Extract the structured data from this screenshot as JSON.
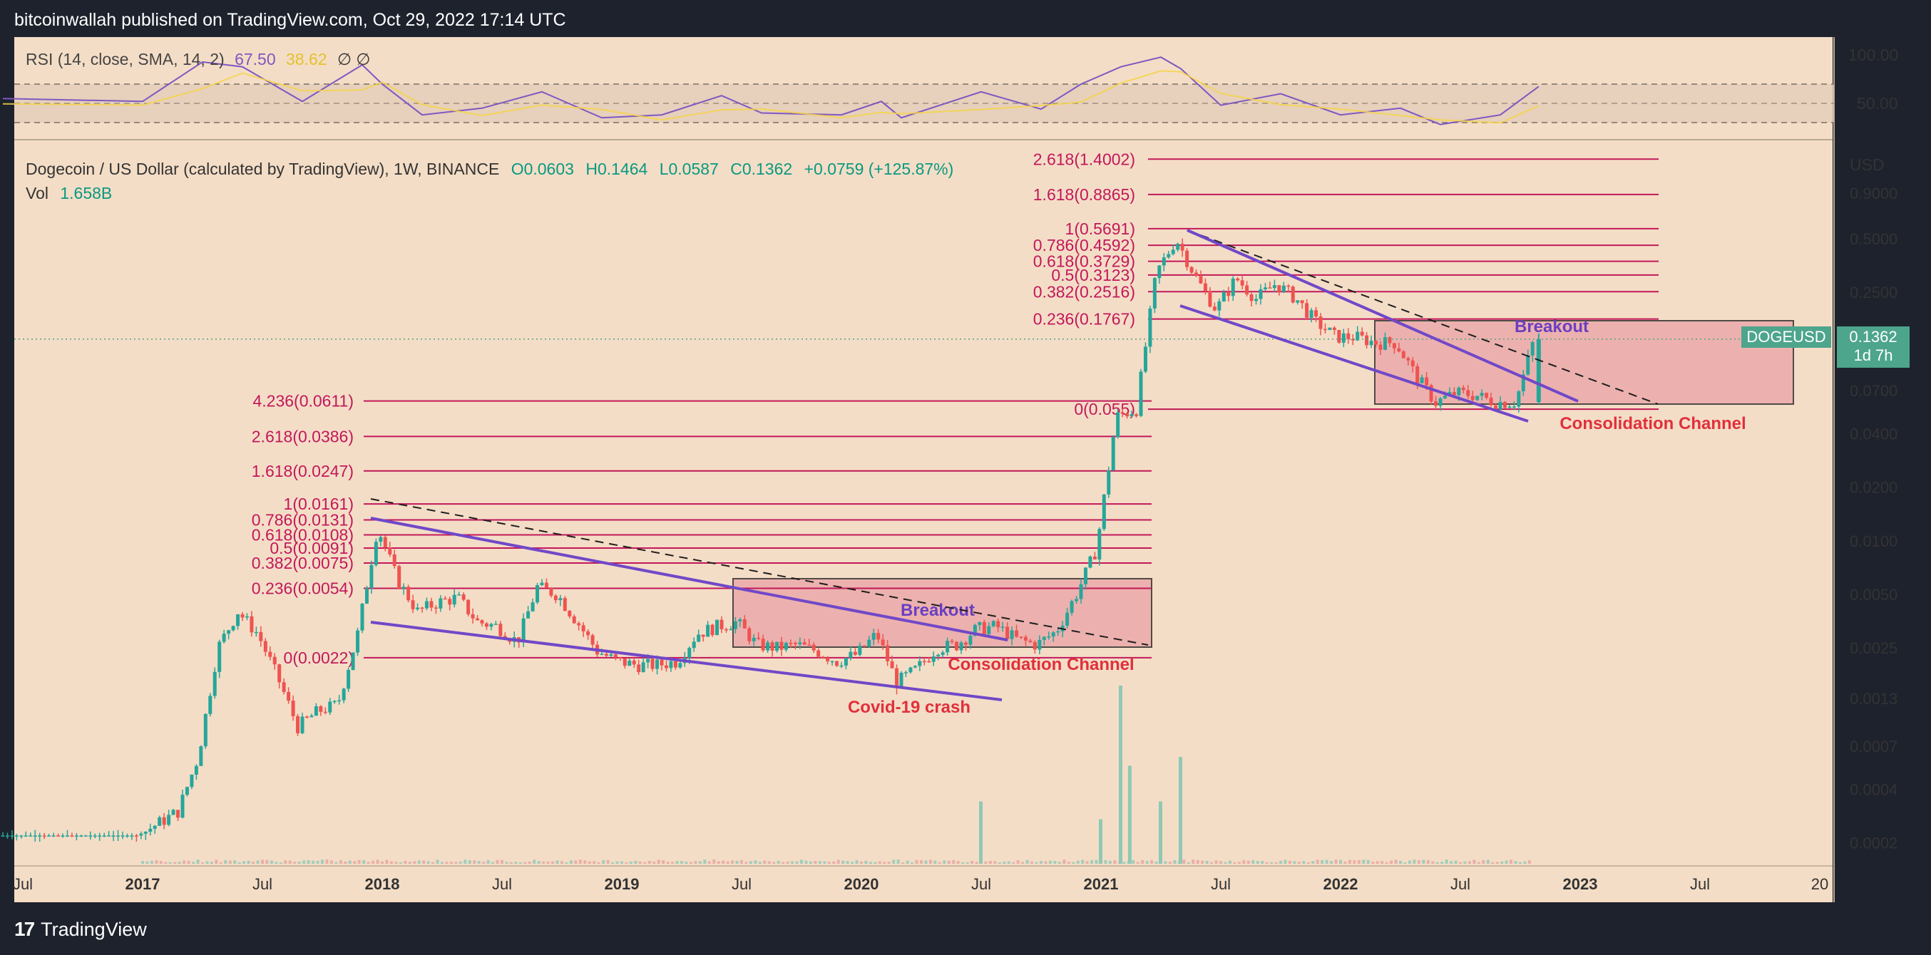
{
  "header": {
    "publisher": "bitcoinwallah published on TradingView.com, Oct 29, 2022 17:14 UTC"
  },
  "rsi_panel": {
    "title": "RSI (14, close, SMA, 14, 2)",
    "rsi_value": "67.50",
    "sma_value": "38.62",
    "toggles": "∅ ∅",
    "scale_labels": [
      "100.00",
      "50.00"
    ],
    "colors": {
      "rsi": "#7e57c2",
      "sma": "#f5d547"
    }
  },
  "main_panel": {
    "symbol": "Dogecoin / US Dollar (calculated by TradingView), 1W, BINANCE",
    "ohlc": {
      "open": "O0.0603",
      "high": "H0.1464",
      "low": "L0.0587",
      "close": "C0.1362",
      "change": "+0.0759 (+125.87%)"
    },
    "vol_label": "Vol",
    "vol_value": "1.658B",
    "currency": "USD",
    "price_ticker": "DOGEUSD",
    "last_price": "0.1362",
    "countdown": "1d 7h",
    "colors": {
      "up": "#26a69a",
      "down": "#ef5350",
      "ohlc": "#089981",
      "fib": "#c2185b",
      "channel": "#7048c8",
      "box": "#ef9a9a"
    }
  },
  "footer": {
    "brand": "TradingView"
  },
  "chart_data": {
    "type": "candlestick",
    "scale": "log",
    "y_axis_labels": [
      "0.9000",
      "0.5000",
      "0.2500",
      "0.1362",
      "0.0700",
      "0.0400",
      "0.0200",
      "0.0100",
      "0.0050",
      "0.0025",
      "0.0013",
      "0.0007",
      "0.0004",
      "0.0002"
    ],
    "x_axis_labels": [
      "Jul",
      "2017",
      "Jul",
      "2018",
      "Jul",
      "2019",
      "Jul",
      "2020",
      "Jul",
      "2021",
      "Jul",
      "2022",
      "Jul",
      "2023",
      "Jul",
      "20"
    ],
    "fib_levels_2018": [
      "4.236(0.0611)",
      "2.618(0.0386)",
      "1.618(0.0247)",
      "1(0.0161)",
      "0.786(0.0131)",
      "0.618(0.0108)",
      "0.5(0.0091)",
      "0.382(0.0075)",
      "0.236(0.0054)",
      "0(0.0022)"
    ],
    "fib_levels_2021": [
      "2.618(1.4002)",
      "1.618(0.8865)",
      "1(0.5691)",
      "0.786(0.4592)",
      "0.618(0.3729)",
      "0.5(0.3123)",
      "0.382(0.2516)",
      "0.236(0.1767)",
      "0(0.055)"
    ],
    "annotations": [
      {
        "text": "Breakout",
        "color": "#6a3fc0"
      },
      {
        "text": "Consolidation Channel",
        "color": "#e0303c"
      },
      {
        "text": "Covid-19 crash",
        "color": "#e0303c"
      },
      {
        "text": "Breakout",
        "color": "#6a3fc0"
      },
      {
        "text": "Consolidation Channel",
        "color": "#e0303c"
      }
    ],
    "price_path": [
      [
        "2016-06",
        0.00022
      ],
      [
        "2017-01",
        0.00022
      ],
      [
        "2017-03",
        0.0003
      ],
      [
        "2017-04",
        0.0006
      ],
      [
        "2017-05",
        0.0025
      ],
      [
        "2017-06",
        0.004
      ],
      [
        "2017-07",
        0.003
      ],
      [
        "2017-08",
        0.0017
      ],
      [
        "2017-09",
        0.0009
      ],
      [
        "2017-10",
        0.0011
      ],
      [
        "2017-11",
        0.0012
      ],
      [
        "2017-12",
        0.003
      ],
      [
        "2018-01",
        0.012
      ],
      [
        "2018-02",
        0.006
      ],
      [
        "2018-03",
        0.004
      ],
      [
        "2018-04",
        0.0045
      ],
      [
        "2018-05",
        0.0048
      ],
      [
        "2018-06",
        0.0035
      ],
      [
        "2018-07",
        0.0033
      ],
      [
        "2018-08",
        0.0027
      ],
      [
        "2018-09",
        0.0055
      ],
      [
        "2018-10",
        0.005
      ],
      [
        "2018-11",
        0.0035
      ],
      [
        "2018-12",
        0.0024
      ],
      [
        "2019-01",
        0.0021
      ],
      [
        "2019-02",
        0.002
      ],
      [
        "2019-03",
        0.002
      ],
      [
        "2019-04",
        0.0021
      ],
      [
        "2019-05",
        0.003
      ],
      [
        "2019-06",
        0.0033
      ],
      [
        "2019-07",
        0.0035
      ],
      [
        "2019-08",
        0.0026
      ],
      [
        "2019-09",
        0.0025
      ],
      [
        "2019-10",
        0.0026
      ],
      [
        "2019-11",
        0.0024
      ],
      [
        "2019-12",
        0.0021
      ],
      [
        "2020-01",
        0.0023
      ],
      [
        "2020-02",
        0.003
      ],
      [
        "2020-03",
        0.0016
      ],
      [
        "2020-04",
        0.0019
      ],
      [
        "2020-05",
        0.0025
      ],
      [
        "2020-06",
        0.0026
      ],
      [
        "2020-07",
        0.0032
      ],
      [
        "2020-08",
        0.0033
      ],
      [
        "2020-09",
        0.0028
      ],
      [
        "2020-10",
        0.0026
      ],
      [
        "2020-11",
        0.0031
      ],
      [
        "2020-12",
        0.005
      ],
      [
        "2021-01",
        0.009
      ],
      [
        "2021-02",
        0.05
      ],
      [
        "2021-03",
        0.055
      ],
      [
        "2021-04",
        0.32
      ],
      [
        "2021-05",
        0.5
      ],
      [
        "2021-06",
        0.3
      ],
      [
        "2021-07",
        0.2
      ],
      [
        "2021-08",
        0.3
      ],
      [
        "2021-09",
        0.23
      ],
      [
        "2021-10",
        0.28
      ],
      [
        "2021-11",
        0.23
      ],
      [
        "2021-12",
        0.17
      ],
      [
        "2022-01",
        0.14
      ],
      [
        "2022-02",
        0.14
      ],
      [
        "2022-03",
        0.13
      ],
      [
        "2022-04",
        0.13
      ],
      [
        "2022-05",
        0.085
      ],
      [
        "2022-06",
        0.06
      ],
      [
        "2022-07",
        0.068
      ],
      [
        "2022-08",
        0.066
      ],
      [
        "2022-09",
        0.06
      ],
      [
        "2022-10",
        0.0603
      ],
      [
        "2022-10-29",
        0.1362
      ]
    ],
    "rsi_path": [
      [
        "2016-06",
        55
      ],
      [
        "2017-01",
        52
      ],
      [
        "2017-04",
        93
      ],
      [
        "2017-06",
        88
      ],
      [
        "2017-09",
        52
      ],
      [
        "2017-12",
        90
      ],
      [
        "2018-01",
        70
      ],
      [
        "2018-03",
        38
      ],
      [
        "2018-06",
        45
      ],
      [
        "2018-09",
        62
      ],
      [
        "2018-12",
        35
      ],
      [
        "2019-03",
        38
      ],
      [
        "2019-06",
        58
      ],
      [
        "2019-08",
        40
      ],
      [
        "2019-12",
        38
      ],
      [
        "2020-02",
        52
      ],
      [
        "2020-03",
        35
      ],
      [
        "2020-07",
        62
      ],
      [
        "2020-10",
        44
      ],
      [
        "2020-12",
        70
      ],
      [
        "2021-02",
        88
      ],
      [
        "2021-04",
        98
      ],
      [
        "2021-05",
        86
      ],
      [
        "2021-07",
        48
      ],
      [
        "2021-10",
        60
      ],
      [
        "2022-01",
        38
      ],
      [
        "2022-04",
        45
      ],
      [
        "2022-06",
        28
      ],
      [
        "2022-09",
        38
      ],
      [
        "2022-10-29",
        67.5
      ]
    ],
    "volume": [
      {
        "x": "2020-07",
        "v": 0.35
      },
      {
        "x": "2021-01",
        "v": 0.25
      },
      {
        "x": "2021-02",
        "v": 1.0
      },
      {
        "x": "2021-02-15",
        "v": 0.55
      },
      {
        "x": "2021-05",
        "v": 0.6
      },
      {
        "x": "2021-04",
        "v": 0.35
      }
    ]
  }
}
